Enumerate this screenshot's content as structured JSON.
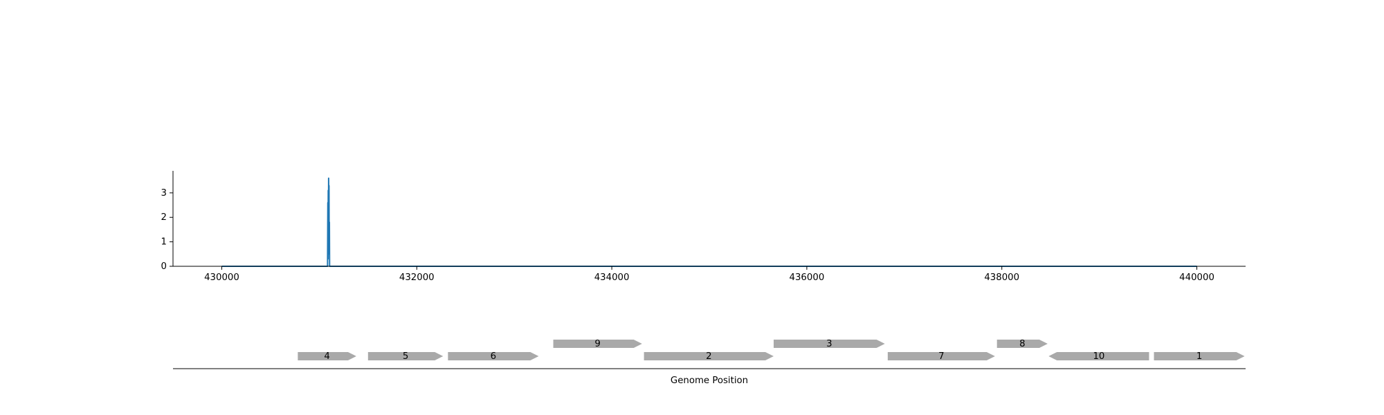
{
  "chart_data": [
    {
      "type": "line",
      "title": "",
      "xlabel": "",
      "ylabel": "",
      "xlim": [
        429500,
        440500
      ],
      "ylim": [
        0,
        3.9
      ],
      "xticks": [
        430000,
        432000,
        434000,
        436000,
        438000,
        440000
      ],
      "yticks": [
        0,
        1,
        2,
        3
      ],
      "grid": false,
      "color": "#1f77b4",
      "series": [
        {
          "x": [
            430000,
            431085,
            431088,
            431090,
            431092,
            431094,
            431096,
            431098,
            431100,
            431102,
            431104,
            431106,
            440000
          ],
          "y": [
            0,
            0,
            2.6,
            0.3,
            3.1,
            1.2,
            3.6,
            2.0,
            3.3,
            0.5,
            1.8,
            0,
            0
          ]
        }
      ]
    },
    {
      "type": "gene-track",
      "xlabel": "Genome Position",
      "xlim": [
        429500,
        440500
      ],
      "fill_color": "#a9a9a9",
      "genes": [
        {
          "label": "4",
          "start": 430780,
          "end": 431380,
          "strand": "+",
          "row": 0
        },
        {
          "label": "5",
          "start": 431500,
          "end": 432270,
          "strand": "+",
          "row": 0
        },
        {
          "label": "6",
          "start": 432320,
          "end": 433250,
          "strand": "+",
          "row": 0
        },
        {
          "label": "9",
          "start": 433400,
          "end": 434310,
          "strand": "+",
          "row": 1
        },
        {
          "label": "2",
          "start": 434330,
          "end": 435660,
          "strand": "+",
          "row": 0
        },
        {
          "label": "3",
          "start": 435660,
          "end": 436800,
          "strand": "+",
          "row": 1
        },
        {
          "label": "7",
          "start": 436830,
          "end": 437930,
          "strand": "+",
          "row": 0
        },
        {
          "label": "8",
          "start": 437950,
          "end": 438470,
          "strand": "+",
          "row": 1
        },
        {
          "label": "10",
          "start": 438480,
          "end": 439510,
          "strand": "-",
          "row": 0
        },
        {
          "label": "1",
          "start": 439560,
          "end": 440490,
          "strand": "+",
          "row": 0
        }
      ]
    }
  ]
}
